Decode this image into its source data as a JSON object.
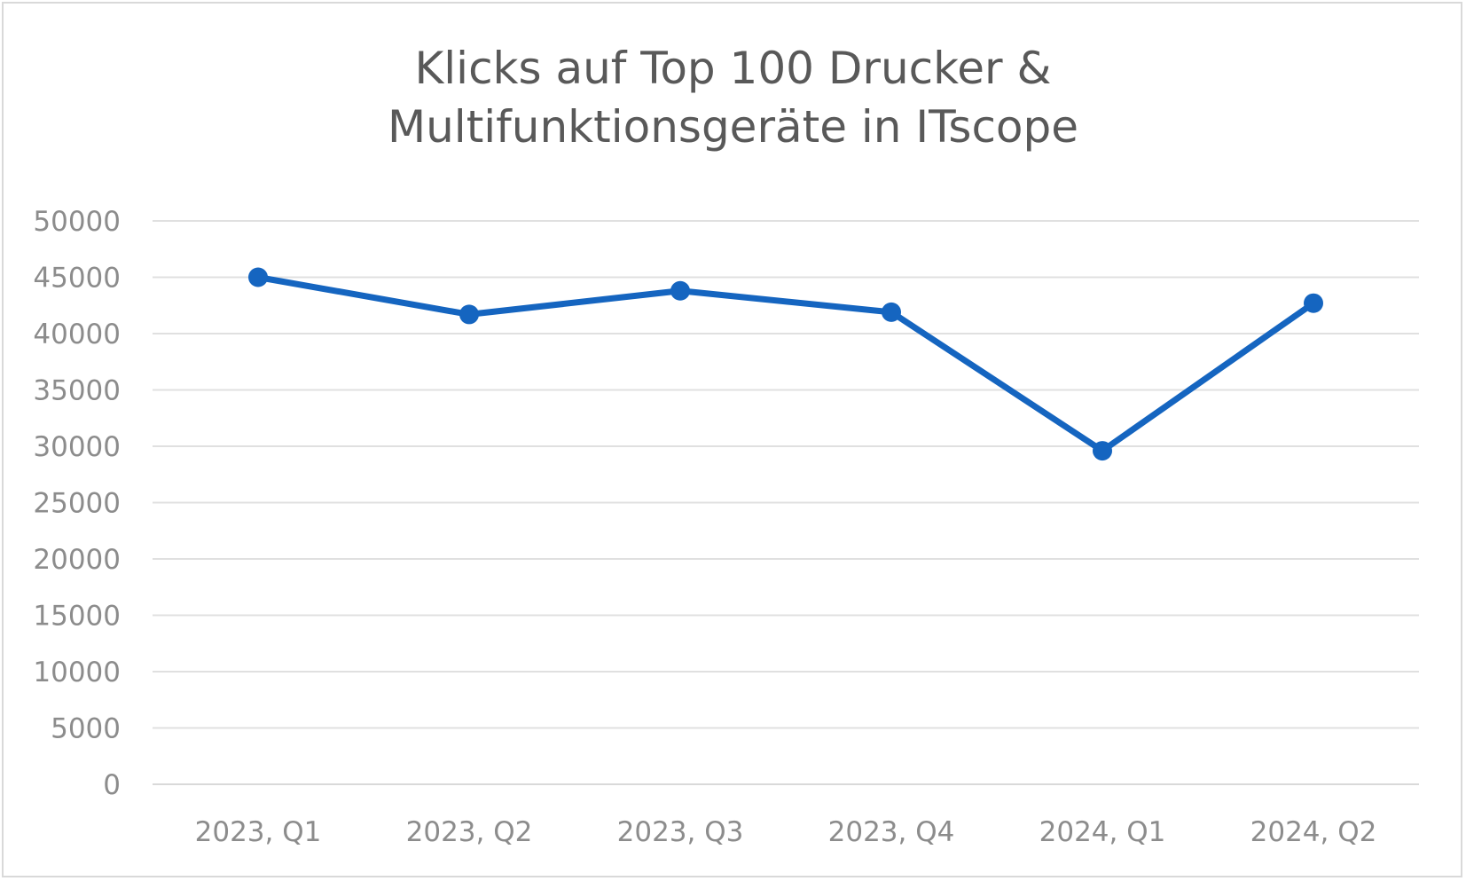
{
  "chart_data": {
    "type": "line",
    "title_lines": [
      "Klicks auf Top 100 Drucker &",
      "Multifunktionsgeräte in ITscope"
    ],
    "categories": [
      "2023, Q1",
      "2023, Q2",
      "2023, Q3",
      "2023, Q4",
      "2024, Q1",
      "2024, Q2"
    ],
    "series": [
      {
        "values": [
          45000,
          41700,
          43800,
          41900,
          29600,
          42700
        ]
      }
    ],
    "ylim": [
      0,
      50000
    ],
    "yticks": [
      0,
      5000,
      10000,
      15000,
      20000,
      25000,
      30000,
      35000,
      40000,
      45000,
      50000
    ],
    "ytick_labels": [
      "0",
      "5000",
      "10000",
      "15000",
      "20000",
      "25000",
      "30000",
      "35000",
      "40000",
      "45000",
      "50000"
    ],
    "grid": true,
    "legend": "none",
    "colors": {
      "series": "#1565c0",
      "grid": "#e0e0e0",
      "text": "#8c8c8c",
      "title": "#595959"
    }
  }
}
